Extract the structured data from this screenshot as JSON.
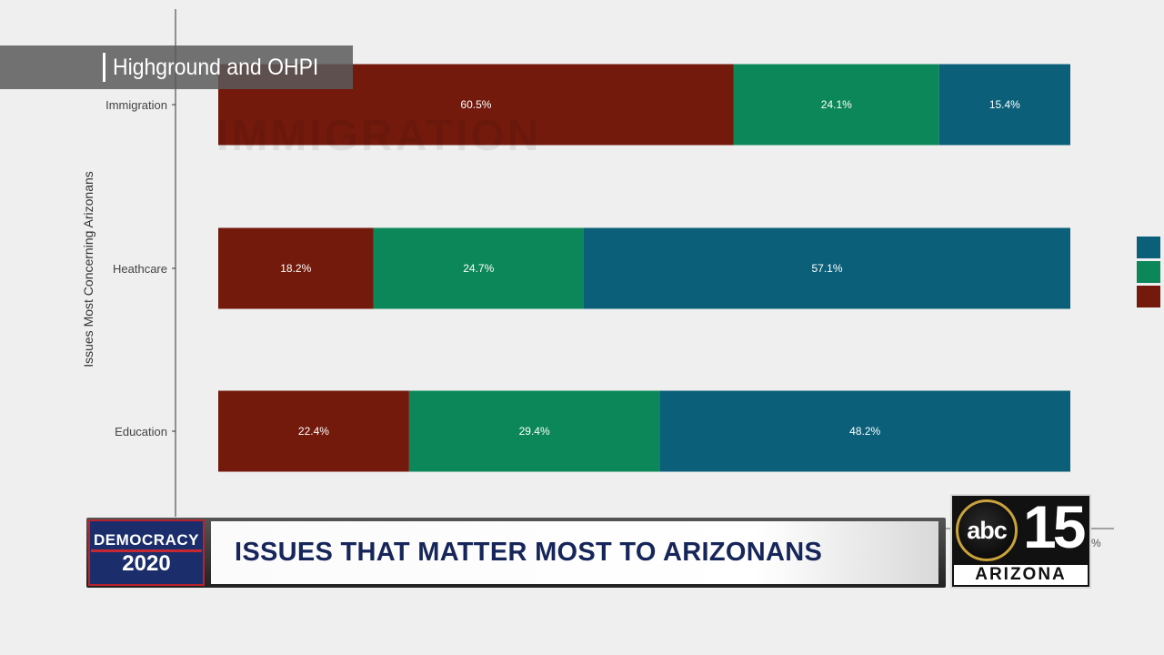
{
  "overlay": {
    "source": "Highground and OHPI",
    "watermark": "IMMIGRATION",
    "badge_line1": "DEMOCRACY",
    "badge_line2": "2020",
    "headline": "ISSUES THAT MATTER MOST TO ARIZONANS",
    "logo_abc": "abc",
    "logo_number": "15",
    "logo_state": "ARIZONA",
    "axis_fragment": "%"
  },
  "chart_data": {
    "type": "bar",
    "orientation": "horizontal",
    "stacked": true,
    "ylabel": "Issues Most Concerning Arizonans",
    "categories": [
      "Immigration",
      "Heathcare",
      "Education"
    ],
    "series": [
      {
        "values": [
          60.5,
          18.2,
          22.4
        ],
        "labels": [
          "60.5%",
          "18.2%",
          "22.4%"
        ],
        "color": "#731a0c"
      },
      {
        "values": [
          24.1,
          24.7,
          29.4
        ],
        "labels": [
          "24.1%",
          "24.7%",
          "29.4%"
        ],
        "color": "#0c8759"
      },
      {
        "values": [
          15.4,
          57.1,
          48.2
        ],
        "labels": [
          "15.4%",
          "57.1%",
          "48.2%"
        ],
        "color": "#0b5f79"
      }
    ],
    "legend": {
      "position": "right",
      "colors": [
        "#0b5f79",
        "#0c8759",
        "#731a0c"
      ]
    },
    "grid": false
  }
}
